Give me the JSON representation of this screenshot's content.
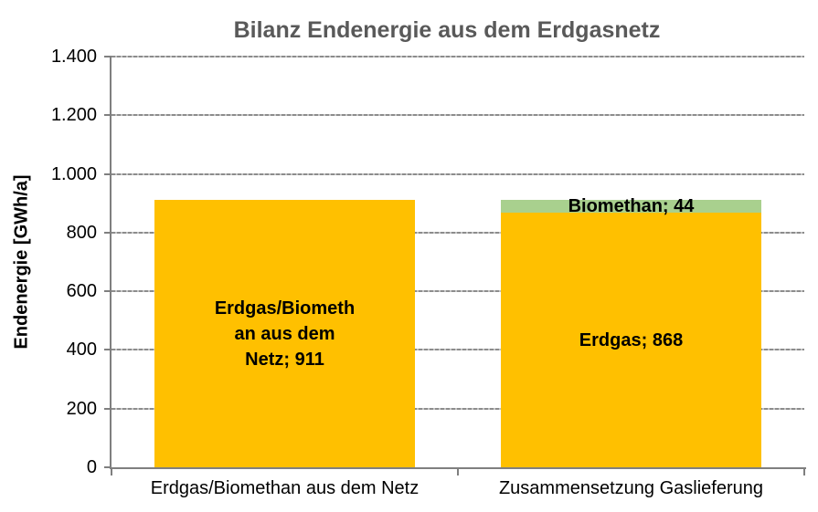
{
  "chart_data": {
    "type": "bar",
    "stacked": true,
    "title": "Bilanz Endenergie aus dem Erdgasnetz",
    "ylabel": "Endenergie [GWh/a]",
    "xlabel": "",
    "categories": [
      "Erdgas/Biomethan aus dem Netz",
      "Zusammensetzung Gaslieferung"
    ],
    "series": [
      {
        "name": "Erdgas/Biomethan aus dem Netz",
        "color": "#FFC000",
        "values": [
          911,
          0
        ]
      },
      {
        "name": "Erdgas",
        "color": "#FFC000",
        "values": [
          0,
          868
        ]
      },
      {
        "name": "Biomethan",
        "color": "#A9D08E",
        "values": [
          0,
          44
        ]
      }
    ],
    "ylim": [
      0,
      1400
    ],
    "ytick_interval": 200,
    "yticks": [
      {
        "value": 0,
        "label": "0"
      },
      {
        "value": 200,
        "label": "200"
      },
      {
        "value": 400,
        "label": "400"
      },
      {
        "value": 600,
        "label": "600"
      },
      {
        "value": 800,
        "label": "800"
      },
      {
        "value": 1000,
        "label": "1.000"
      },
      {
        "value": 1200,
        "label": "1.200"
      },
      {
        "value": 1400,
        "label": "1.400"
      }
    ],
    "grid": true,
    "legend": false,
    "bars": [
      {
        "category": "Erdgas/Biomethan aus dem Netz",
        "segments": [
          {
            "name": "Erdgas/Biomethan aus dem Netz",
            "value": 911,
            "color": "#FFC000",
            "label_lines": [
              "Erdgas/Biometh",
              "an aus dem",
              "Netz; 911"
            ]
          }
        ]
      },
      {
        "category": "Zusammensetzung Gaslieferung",
        "segments": [
          {
            "name": "Erdgas",
            "value": 868,
            "color": "#FFC000",
            "label_lines": [
              "Erdgas; 868"
            ]
          },
          {
            "name": "Biomethan",
            "value": 44,
            "color": "#A9D08E",
            "label_lines": [
              "Biomethan; 44"
            ]
          }
        ]
      }
    ],
    "colors": {
      "erdgas": "#FFC000",
      "biomethan": "#A9D08E",
      "title_text": "#595959",
      "axis": "#7f7f7f",
      "gridline": "#8c8c8c",
      "label_text": "#000000"
    }
  }
}
